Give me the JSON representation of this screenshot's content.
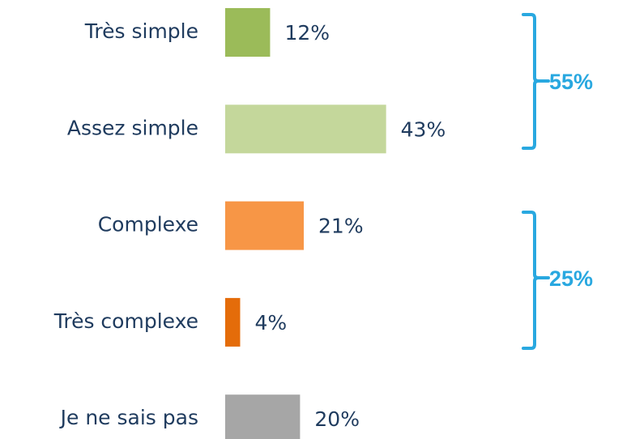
{
  "chart_data": {
    "type": "barh",
    "categories": [
      "Très simple",
      "Assez simple",
      "Complexe",
      "Très complexe",
      "Je ne sais pas"
    ],
    "values": [
      12,
      43,
      21,
      4,
      20
    ],
    "value_labels": [
      "12%",
      "43%",
      "21%",
      "4%",
      "20%"
    ],
    "colors": [
      "#9bbb59",
      "#c4d79b",
      "#f79646",
      "#e46c0a",
      "#a6a6a6"
    ],
    "annotations": [
      "55%",
      "25%"
    ]
  }
}
